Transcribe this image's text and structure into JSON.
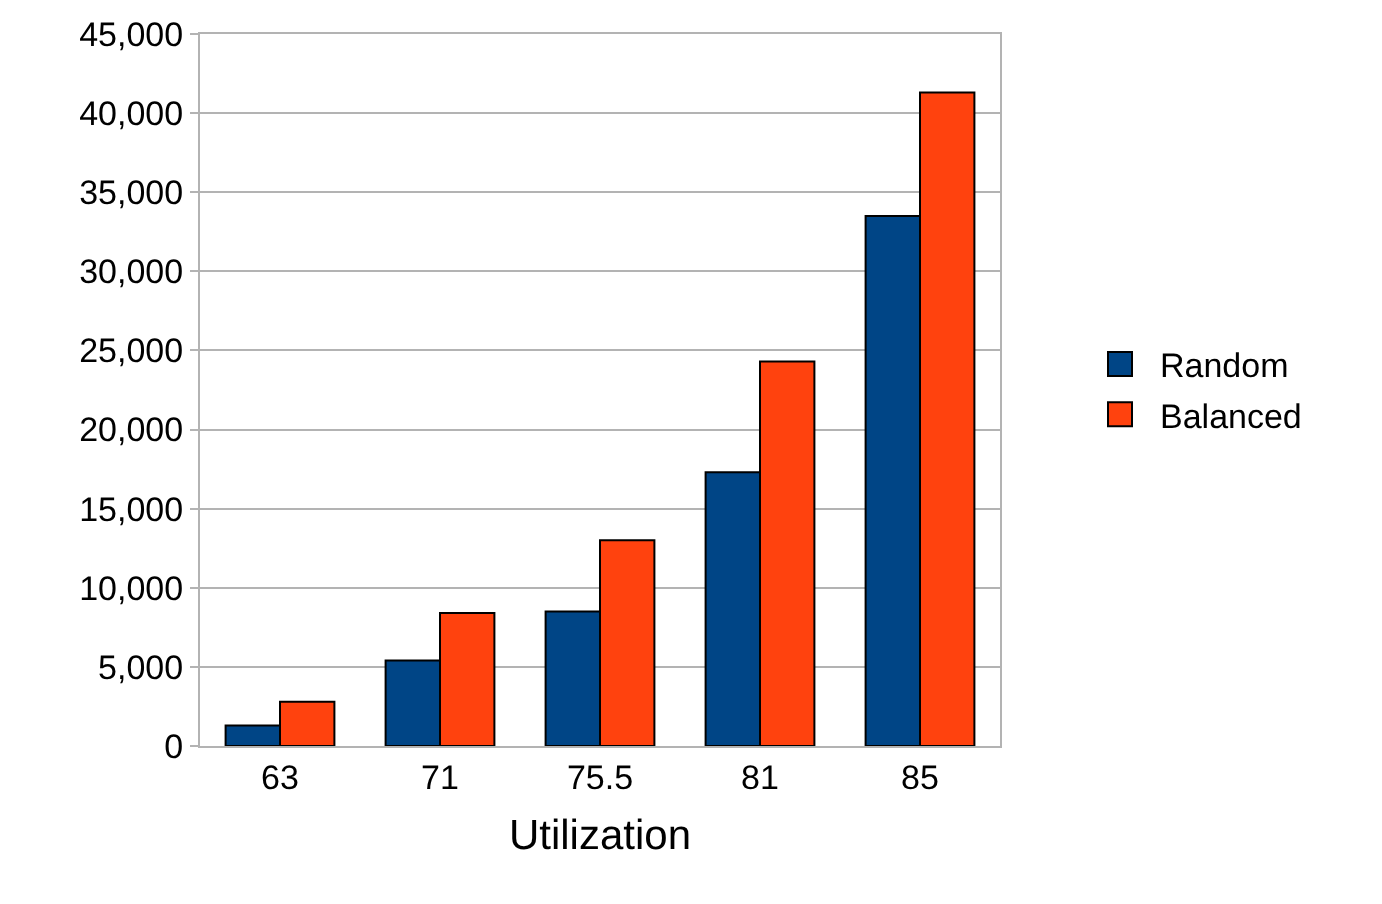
{
  "chart_data": {
    "type": "bar",
    "xlabel": "Utilization",
    "categories": [
      "63",
      "71",
      "75.5",
      "81",
      "85"
    ],
    "series": [
      {
        "name": "Random",
        "color": "#004586",
        "values": [
          1300,
          5400,
          8500,
          17300,
          33500
        ]
      },
      {
        "name": "Balanced",
        "color": "#ff420e",
        "values": [
          2800,
          8400,
          13000,
          24300,
          41300
        ]
      }
    ],
    "ylim": [
      0,
      45000
    ],
    "yticks": [
      {
        "value": 0,
        "label": "0"
      },
      {
        "value": 5000,
        "label": "5,000"
      },
      {
        "value": 10000,
        "label": "10,000"
      },
      {
        "value": 15000,
        "label": "15,000"
      },
      {
        "value": 20000,
        "label": "20,000"
      },
      {
        "value": 25000,
        "label": "25,000"
      },
      {
        "value": 30000,
        "label": "30,000"
      },
      {
        "value": 35000,
        "label": "35,000"
      },
      {
        "value": 40000,
        "label": "40,000"
      },
      {
        "value": 45000,
        "label": "45,000"
      }
    ],
    "grid": "y",
    "legend": "right"
  }
}
